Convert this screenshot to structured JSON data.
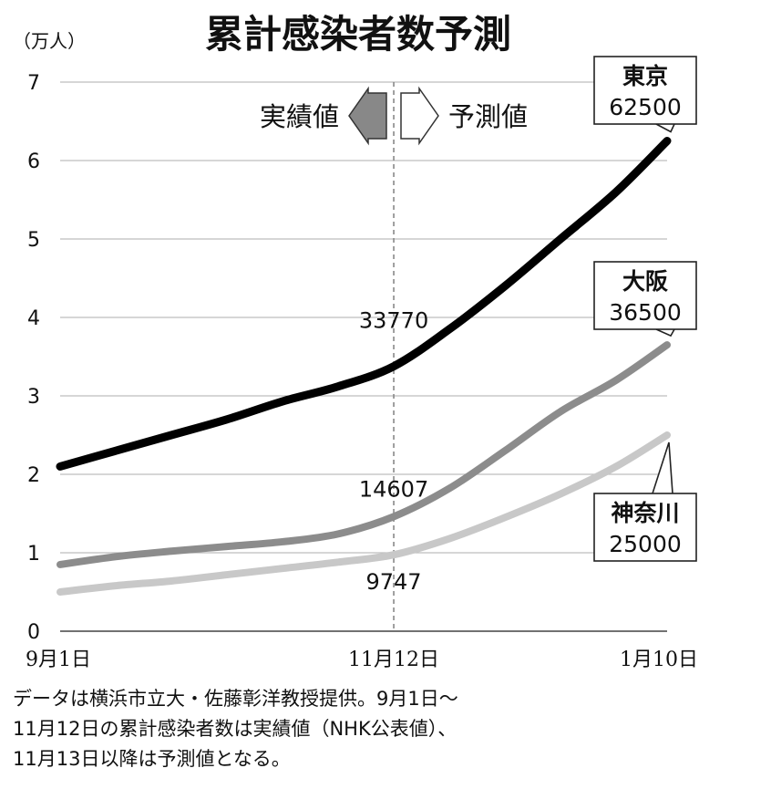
{
  "title": "累計感染者数予測",
  "unit_label": "（万人）",
  "phase_labels": {
    "actual": "実績値",
    "forecast": "予測値"
  },
  "chart_data": {
    "type": "line",
    "ylim": [
      0,
      7
    ],
    "yticks": [
      0,
      1,
      2,
      3,
      4,
      5,
      6,
      7
    ],
    "x_range_days": [
      0,
      131
    ],
    "xticks": [
      {
        "day": 0,
        "label": "9月1日"
      },
      {
        "day": 72,
        "label": "11月12日"
      },
      {
        "day": 131,
        "label": "1月10日"
      }
    ],
    "divider_day": 72,
    "series": [
      {
        "name": "東京",
        "color": "#000000",
        "stroke": 9,
        "points": [
          [
            0,
            2.1
          ],
          [
            12,
            2.3
          ],
          [
            24,
            2.5
          ],
          [
            36,
            2.7
          ],
          [
            48,
            2.93
          ],
          [
            60,
            3.12
          ],
          [
            72,
            3.377
          ],
          [
            84,
            3.85
          ],
          [
            96,
            4.4
          ],
          [
            108,
            5.0
          ],
          [
            120,
            5.6
          ],
          [
            131,
            6.25
          ]
        ],
        "mid_label": "33770",
        "end_value": "62500"
      },
      {
        "name": "大阪",
        "color": "#8c8c8c",
        "stroke": 8,
        "points": [
          [
            0,
            0.85
          ],
          [
            12,
            0.95
          ],
          [
            24,
            1.02
          ],
          [
            36,
            1.08
          ],
          [
            48,
            1.14
          ],
          [
            60,
            1.24
          ],
          [
            72,
            1.4607
          ],
          [
            84,
            1.82
          ],
          [
            96,
            2.3
          ],
          [
            108,
            2.8
          ],
          [
            120,
            3.2
          ],
          [
            131,
            3.65
          ]
        ],
        "mid_label": "14607",
        "end_value": "36500"
      },
      {
        "name": "神奈川",
        "color": "#c8c8c8",
        "stroke": 8,
        "points": [
          [
            0,
            0.5
          ],
          [
            12,
            0.58
          ],
          [
            24,
            0.64
          ],
          [
            36,
            0.72
          ],
          [
            48,
            0.8
          ],
          [
            60,
            0.88
          ],
          [
            72,
            0.9747
          ],
          [
            84,
            1.18
          ],
          [
            96,
            1.45
          ],
          [
            108,
            1.75
          ],
          [
            120,
            2.1
          ],
          [
            131,
            2.5
          ]
        ],
        "mid_label": "9747",
        "end_value": "25000"
      }
    ]
  },
  "footnote": [
    "データは横浜市立大・佐藤彰洋教授提供。9月1日～",
    "11月12日の累計感染者数は実績値（NHK公表値）、",
    "11月13日以降は予測値となる。"
  ]
}
